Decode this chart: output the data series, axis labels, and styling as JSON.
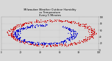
{
  "title": "Milwaukee Weather Outdoor Humidity\nvs Temperature\nEvery 5 Minutes",
  "title_fontsize": 2.8,
  "dot_size": 0.8,
  "red_color": "#cc0000",
  "blue_color": "#0000cc",
  "bg_color": "#d8d8d8",
  "plot_bg": "#d8d8d8",
  "xlim": [
    0,
    100
  ],
  "ylim": [
    0,
    100
  ],
  "tick_fontsize": 2.0,
  "grid": true,
  "grid_color": "#aaaaaa",
  "grid_linewidth": 0.25,
  "grid_linestyle": "dotted"
}
